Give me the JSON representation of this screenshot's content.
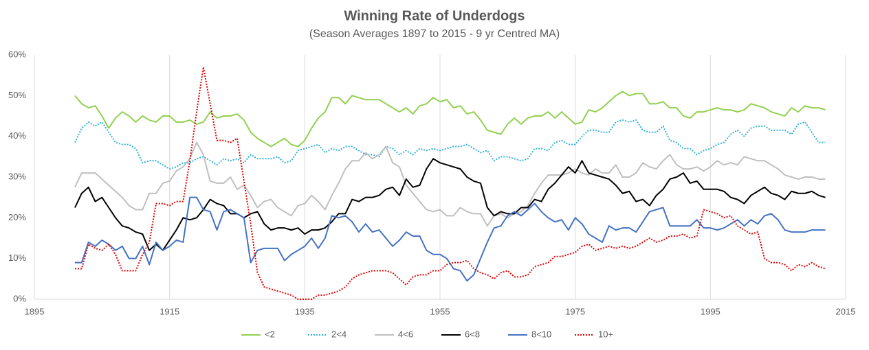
{
  "chart_data": {
    "type": "line",
    "title": "Winning Rate of Underdogs",
    "subtitle": "(Season Averages 1897 to 2015 - 9 yr Centred MA)",
    "xlim": [
      1895,
      2015
    ],
    "xticks": [
      1895,
      1915,
      1935,
      1955,
      1975,
      1995,
      2015
    ],
    "ylim": [
      0,
      60
    ],
    "yticks": [
      {
        "value": 0,
        "label": "0%"
      },
      {
        "value": 10,
        "label": "10%"
      },
      {
        "value": 20,
        "label": "20%"
      },
      {
        "value": 30,
        "label": "30%"
      },
      {
        "value": 40,
        "label": "40%"
      },
      {
        "value": 50,
        "label": "50%"
      },
      {
        "value": 60,
        "label": "60%"
      }
    ],
    "grid": "x",
    "legend": "bottom",
    "x": [
      1901,
      1902,
      1903,
      1904,
      1905,
      1906,
      1907,
      1908,
      1909,
      1910,
      1911,
      1912,
      1913,
      1914,
      1915,
      1916,
      1917,
      1918,
      1919,
      1920,
      1921,
      1922,
      1923,
      1924,
      1925,
      1926,
      1927,
      1928,
      1929,
      1930,
      1931,
      1932,
      1933,
      1934,
      1935,
      1936,
      1937,
      1938,
      1939,
      1940,
      1941,
      1942,
      1943,
      1944,
      1945,
      1946,
      1947,
      1948,
      1949,
      1950,
      1951,
      1952,
      1953,
      1954,
      1955,
      1956,
      1957,
      1958,
      1959,
      1960,
      1961,
      1962,
      1963,
      1964,
      1965,
      1966,
      1967,
      1968,
      1969,
      1970,
      1971,
      1972,
      1973,
      1974,
      1975,
      1976,
      1977,
      1978,
      1979,
      1980,
      1981,
      1982,
      1983,
      1984,
      1985,
      1986,
      1987,
      1988,
      1989,
      1990,
      1991,
      1992,
      1993,
      1994,
      1995,
      1996,
      1997,
      1998,
      1999,
      2000,
      2001,
      2002,
      2003,
      2004,
      2005,
      2006,
      2007,
      2008,
      2009,
      2010,
      2011,
      2012
    ],
    "series": [
      {
        "name": "<2",
        "color": "#92d050",
        "dash": "solid",
        "values": [
          50,
          48,
          47,
          47.5,
          45,
          42,
          44.5,
          46,
          45,
          43.5,
          45,
          44,
          43.5,
          45,
          45,
          43.5,
          43.5,
          44,
          43,
          43.5,
          46,
          44.5,
          45,
          45,
          45.5,
          44,
          41,
          39.5,
          38.5,
          37.5,
          38.5,
          39.5,
          38,
          37.5,
          39,
          42,
          44.5,
          46,
          49.5,
          49.5,
          48,
          50,
          49.5,
          49,
          49,
          49,
          48,
          47,
          46,
          47,
          45.5,
          47.5,
          48,
          49.5,
          48.5,
          49,
          47,
          47.5,
          45.5,
          46,
          44,
          41.5,
          41,
          40.5,
          43,
          44.5,
          43,
          44.5,
          45,
          45,
          46,
          44.5,
          46,
          44.5,
          43,
          43.5,
          46.5,
          46,
          47,
          48.5,
          50,
          51,
          50,
          50.5,
          50.5,
          48,
          48,
          48.5,
          47,
          47,
          45,
          44.5,
          46,
          46,
          46.5,
          47,
          46.5,
          46.5,
          46,
          46.5,
          48,
          47.5,
          47,
          46,
          45.5,
          45,
          47,
          46,
          47.5,
          47,
          47,
          46.5
        ]
      },
      {
        "name": "2<4",
        "color": "#2eb0d8",
        "dash": "dotted",
        "values": [
          38.5,
          42,
          43.5,
          42.5,
          43.5,
          41,
          38.5,
          38,
          38,
          37,
          33.5,
          34,
          34,
          33,
          32,
          32.5,
          33.5,
          33.5,
          34.5,
          35,
          34,
          33,
          34.5,
          34,
          34.5,
          33.5,
          35.5,
          34.5,
          34.5,
          34.5,
          35,
          33.5,
          34,
          36.5,
          37,
          37.5,
          38,
          36,
          37,
          36.5,
          37.5,
          37.5,
          36.5,
          35.5,
          35.5,
          35,
          37.5,
          37,
          35.5,
          36.5,
          35.5,
          37,
          36.5,
          37,
          36.5,
          37,
          37.5,
          37.5,
          38,
          37,
          36,
          36.5,
          34,
          35,
          35,
          34.5,
          34,
          34.5,
          37,
          37,
          36.5,
          38.5,
          39,
          38,
          38,
          40,
          41.5,
          41.5,
          41,
          41,
          43.5,
          44,
          43.5,
          44,
          41.5,
          41,
          41,
          42.5,
          39,
          38.5,
          37,
          37,
          35.5,
          36.5,
          37,
          38,
          38.5,
          40.5,
          41.5,
          40,
          42,
          42.5,
          42.5,
          41.5,
          41.5,
          41.5,
          40.5,
          43,
          43.5,
          41,
          38.5,
          38.5
        ]
      },
      {
        "name": "4<6",
        "color": "#bfbfbf",
        "dash": "solid",
        "values": [
          27.5,
          31,
          31,
          31,
          29.5,
          28,
          26.5,
          25,
          23,
          22,
          22,
          26,
          26,
          28.5,
          29,
          31.5,
          32.5,
          34.5,
          38.5,
          35.5,
          29,
          28.5,
          28.5,
          30,
          27,
          28,
          25.5,
          22.5,
          24,
          24.5,
          22.5,
          21.5,
          20.5,
          23,
          23.5,
          25.5,
          24,
          22,
          25.5,
          28.5,
          32,
          34,
          34,
          36,
          34.5,
          35.5,
          37.5,
          33.5,
          32.5,
          28,
          26,
          24,
          22,
          21.5,
          22,
          20.5,
          20.5,
          22.5,
          21.5,
          21,
          21,
          18,
          20.5,
          21,
          20,
          21,
          21.5,
          23,
          26,
          28.5,
          30.5,
          30.5,
          30.5,
          31,
          32,
          31,
          30.5,
          32,
          31,
          31,
          33,
          30,
          30,
          31,
          33.5,
          32.5,
          32,
          34,
          35.5,
          33,
          32,
          32,
          32.5,
          31.5,
          32.5,
          34,
          33,
          33.5,
          33,
          35,
          34.5,
          34,
          34,
          33,
          32,
          30.5,
          30,
          29.5,
          30,
          30,
          29.5,
          29.5
        ]
      },
      {
        "name": "6<8",
        "color": "#000000",
        "dash": "solid",
        "values": [
          22.5,
          26,
          27.5,
          24,
          25,
          22.5,
          20,
          18,
          17.5,
          16.5,
          16,
          12,
          13.5,
          12,
          14.5,
          17,
          20,
          19.5,
          20,
          22,
          24.5,
          23.5,
          23,
          21,
          21,
          20,
          21,
          21.5,
          18.5,
          17,
          17.5,
          17.5,
          17,
          17.5,
          16,
          17,
          17,
          17.5,
          19,
          21,
          21,
          24.5,
          24,
          25,
          25,
          25.5,
          27,
          27.5,
          25.5,
          29.5,
          27.5,
          28,
          32,
          34.5,
          33.5,
          33,
          32.5,
          32,
          30,
          29,
          28.5,
          22.5,
          20.5,
          21.5,
          21,
          21,
          22.5,
          22.5,
          24.5,
          24,
          27,
          28.5,
          30.5,
          32.5,
          31,
          34,
          31,
          30.5,
          30,
          29.5,
          28,
          26,
          26.5,
          24,
          24.5,
          23,
          25.5,
          27,
          29.5,
          30,
          31,
          28.5,
          29,
          27,
          27,
          27,
          26.5,
          25,
          24.5,
          23.5,
          25.5,
          26.5,
          27.5,
          26,
          25.5,
          24.5,
          26.5,
          26,
          26,
          26.5,
          25.5,
          25
        ]
      },
      {
        "name": "8<10",
        "color": "#4472c4",
        "dash": "solid",
        "values": [
          9,
          9,
          14,
          13,
          14.5,
          13.5,
          12,
          13,
          10,
          10,
          13,
          8.5,
          14,
          12,
          13,
          14.5,
          14,
          25,
          25,
          22,
          21.5,
          17,
          21.5,
          22,
          21,
          20,
          9,
          12,
          12.5,
          12.5,
          12.5,
          9.5,
          11,
          12,
          13,
          15,
          12.5,
          15,
          20.5,
          20,
          20.5,
          19,
          16.5,
          18.5,
          16.5,
          17,
          15,
          13,
          14.5,
          16.5,
          15.5,
          15.5,
          12,
          11,
          11,
          10,
          7.5,
          7,
          4.5,
          6,
          10,
          14,
          17.5,
          18,
          20.5,
          21.5,
          20.5,
          22,
          23.5,
          21.5,
          20,
          19,
          19.5,
          17,
          20,
          18.5,
          16,
          15,
          14,
          18,
          17,
          17.5,
          17.5,
          16.5,
          19,
          21.5,
          22,
          22.5,
          18,
          18,
          18,
          18,
          19.5,
          17.5,
          17.5,
          17,
          17.5,
          18.5,
          19.5,
          18,
          19.5,
          18.5,
          20.5,
          21,
          19.5,
          17,
          16.5,
          16.5,
          16.5,
          17,
          17,
          17
        ]
      },
      {
        "name": "10+",
        "color": "#e00000",
        "dash": "dotted",
        "values": [
          7.5,
          7.5,
          13.5,
          12.5,
          12,
          13.5,
          11,
          7,
          7,
          7,
          11,
          14,
          23.5,
          23.5,
          23,
          24,
          24,
          34,
          46,
          57,
          48,
          39,
          39,
          38.5,
          39.5,
          29,
          18.5,
          6.5,
          3,
          2.5,
          2,
          1.5,
          1,
          0,
          0,
          0,
          1,
          1,
          1.5,
          2,
          3,
          5,
          6,
          6.5,
          7,
          7,
          7,
          6.5,
          5,
          3.5,
          5.5,
          6,
          6,
          7,
          7,
          8.5,
          9,
          9,
          9.5,
          7.5,
          6.5,
          6,
          5,
          6.5,
          7,
          5.5,
          5.5,
          6,
          8,
          8.5,
          9,
          10.5,
          10.5,
          11,
          11.5,
          13,
          13.5,
          12,
          12.5,
          13,
          12.5,
          13,
          12.5,
          13,
          14,
          15,
          14,
          14.5,
          15.5,
          15.5,
          16,
          15,
          15.5,
          22,
          21.5,
          21,
          20,
          20.5,
          18,
          17,
          16,
          16.5,
          10,
          9,
          9,
          8.5,
          7,
          8.5,
          8,
          9,
          8,
          7.5
        ]
      }
    ]
  }
}
